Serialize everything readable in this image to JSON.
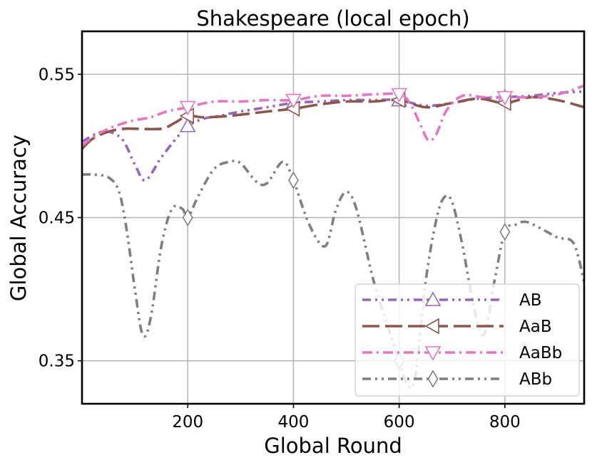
{
  "chart_data": {
    "type": "line",
    "title": "Shakespeare (local epoch)",
    "xlabel": "Global Round",
    "ylabel": "Global Accuracy",
    "xlim": [
      0,
      950
    ],
    "ylim": [
      0.32,
      0.58
    ],
    "xticks": [
      200,
      400,
      600,
      800
    ],
    "xtick_labels": [
      "200",
      "400",
      "600",
      "800"
    ],
    "yticks": [
      0.35,
      0.45,
      0.55
    ],
    "ytick_labels": [
      "0.35",
      "0.45",
      "0.55"
    ],
    "grid": true,
    "legend_position": "lower-right",
    "series": [
      {
        "name": "AB",
        "color": "#9467bd",
        "dash": "dash-dot-dot",
        "marker": "triangle-up",
        "marker_x": [
          200,
          400,
          600,
          800
        ],
        "x": [
          0,
          40,
          75,
          100,
          120,
          150,
          180,
          200,
          230,
          260,
          300,
          350,
          400,
          450,
          500,
          550,
          600,
          650,
          700,
          750,
          800,
          850,
          900,
          950
        ],
        "y": [
          0.503,
          0.51,
          0.505,
          0.487,
          0.476,
          0.492,
          0.506,
          0.514,
          0.519,
          0.521,
          0.524,
          0.527,
          0.53,
          0.531,
          0.532,
          0.532,
          0.532,
          0.528,
          0.53,
          0.533,
          0.534,
          0.535,
          0.537,
          0.538
        ]
      },
      {
        "name": "AaB",
        "color": "#8c564b",
        "dash": "long-dash",
        "marker": "triangle-left",
        "marker_x": [
          200,
          400,
          600,
          800
        ],
        "x": [
          0,
          20,
          50,
          80,
          100,
          150,
          175,
          200,
          230,
          280,
          350,
          400,
          450,
          500,
          550,
          600,
          650,
          700,
          750,
          800,
          850,
          900,
          950
        ],
        "y": [
          0.498,
          0.505,
          0.51,
          0.512,
          0.512,
          0.512,
          0.516,
          0.521,
          0.52,
          0.521,
          0.524,
          0.526,
          0.529,
          0.531,
          0.531,
          0.532,
          0.527,
          0.53,
          0.533,
          0.53,
          0.534,
          0.532,
          0.527
        ]
      },
      {
        "name": "AaBb",
        "color": "#e377c2",
        "dash": "dash-dot",
        "marker": "triangle-down",
        "marker_x": [
          200,
          400,
          600,
          800
        ],
        "x": [
          0,
          20,
          50,
          80,
          100,
          130,
          160,
          200,
          250,
          300,
          350,
          400,
          450,
          500,
          550,
          600,
          620,
          640,
          655,
          670,
          690,
          720,
          760,
          800,
          850,
          900,
          950
        ],
        "y": [
          0.5,
          0.506,
          0.512,
          0.516,
          0.518,
          0.52,
          0.524,
          0.527,
          0.531,
          0.531,
          0.532,
          0.532,
          0.535,
          0.535,
          0.536,
          0.536,
          0.53,
          0.515,
          0.504,
          0.508,
          0.525,
          0.535,
          0.534,
          0.534,
          0.534,
          0.536,
          0.542
        ]
      },
      {
        "name": "ABb",
        "color": "#7f7f7f",
        "dash": "dash-dot-dot",
        "marker": "thin-diamond",
        "marker_x": [
          200,
          400,
          600,
          800
        ],
        "x": [
          0,
          20,
          50,
          70,
          85,
          100,
          115,
          130,
          150,
          170,
          190,
          200,
          220,
          250,
          280,
          300,
          330,
          350,
          380,
          400,
          430,
          460,
          480,
          500,
          520,
          550,
          575,
          600,
          615,
          630,
          650,
          670,
          685,
          700,
          720,
          740,
          760,
          780,
          800,
          820,
          840,
          870,
          900,
          930,
          950
        ],
        "y": [
          0.48,
          0.48,
          0.478,
          0.468,
          0.44,
          0.4,
          0.368,
          0.38,
          0.43,
          0.456,
          0.456,
          0.45,
          0.465,
          0.484,
          0.489,
          0.488,
          0.475,
          0.474,
          0.489,
          0.476,
          0.445,
          0.43,
          0.455,
          0.468,
          0.455,
          0.408,
          0.378,
          0.35,
          0.334,
          0.338,
          0.405,
          0.448,
          0.464,
          0.461,
          0.43,
          0.39,
          0.368,
          0.405,
          0.44,
          0.445,
          0.447,
          0.442,
          0.436,
          0.432,
          0.405
        ]
      }
    ]
  }
}
